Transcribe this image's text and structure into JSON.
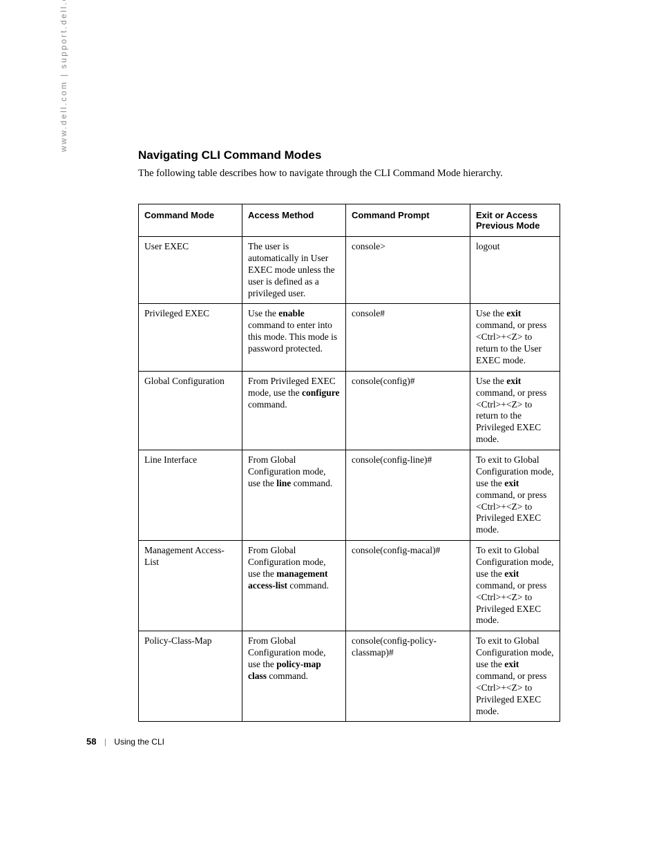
{
  "sidebar": "www.dell.com | support.dell.com",
  "heading": "Navigating CLI Command Modes",
  "intro": "The following table describes how to navigate through the CLI Command Mode hierarchy.",
  "table": {
    "headers": [
      "Command Mode",
      "Access Method",
      "Command Prompt",
      "Exit or Access Previous Mode"
    ],
    "rows": [
      {
        "mode": "User EXEC",
        "access_html": "The user is automatically in User EXEC mode unless the user is defined as a privileged user.",
        "prompt": "console>",
        "exit_html": "logout"
      },
      {
        "mode": "Privileged EXEC",
        "access_html": "Use the <span class=\"b\">enable</span> command to enter into this mode. This mode is password protected.",
        "prompt": "console#",
        "exit_html": "Use the <span class=\"b\">exit</span> command, or press &lt;Ctrl&gt;+&lt;Z&gt; to return to the User EXEC mode."
      },
      {
        "mode": "Global Configuration",
        "access_html": "From Privileged EXEC mode, use the <span class=\"b\">configure</span> command.",
        "prompt": "console(config)#",
        "exit_html": "Use the <span class=\"b\">exit</span> command, or press &lt;Ctrl&gt;+&lt;Z&gt; to return to the Privileged EXEC mode."
      },
      {
        "mode": "Line Interface",
        "access_html": "From Global Configuration mode, use the <span class=\"b\">line</span> command.",
        "prompt": "console(config-line)#",
        "exit_html": "To exit to Global Configuration mode, use the <span class=\"b\">exit</span> command, or press &lt;Ctrl&gt;+&lt;Z&gt; to Privileged EXEC mode."
      },
      {
        "mode": "Management Access-List",
        "access_html": "From Global Configuration mode, use the <span class=\"b\">management access-list</span> command.",
        "prompt": "console(config-macal)#",
        "exit_html": "To exit to Global Configuration mode, use the <span class=\"b\">exit</span> command, or press &lt;Ctrl&gt;+&lt;Z&gt; to Privileged EXEC mode."
      },
      {
        "mode": "Policy-Class-Map",
        "access_html": "From Global Configuration mode, use the <span class=\"b\">policy-map class</span> command.",
        "prompt": "console(config-policy-classmap)#",
        "exit_html": "To exit to Global Configuration mode, use the <span class=\"b\">exit</span> command, or press &lt;Ctrl&gt;+&lt;Z&gt; to Privileged EXEC mode."
      }
    ]
  },
  "footer": {
    "page": "58",
    "section": "Using the CLI"
  }
}
